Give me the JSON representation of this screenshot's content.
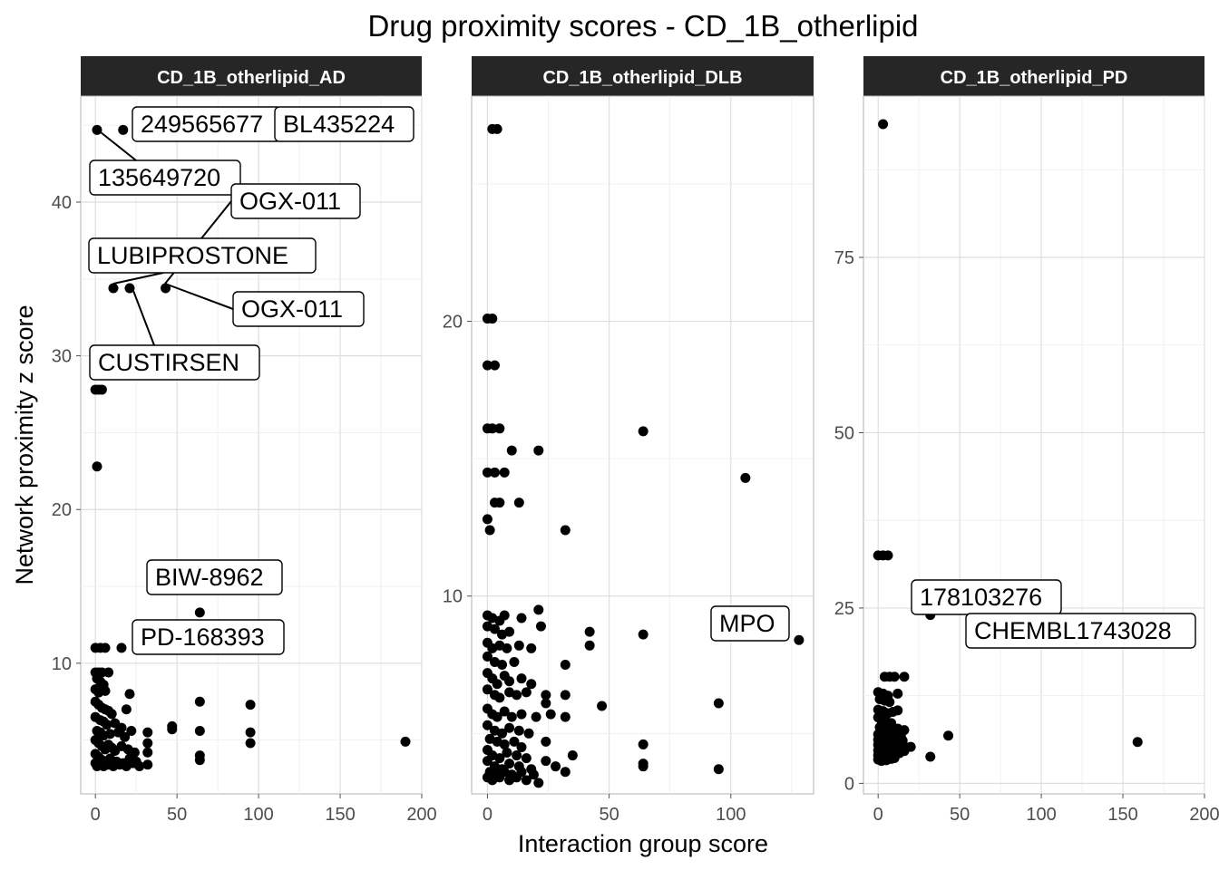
{
  "chart_data": {
    "type": "scatter",
    "title": "Drug proximity scores - CD_1B_otherlipid",
    "xlabel": "Interaction group score",
    "ylabel": "Network proximity z score",
    "grid": true,
    "panels": [
      {
        "name": "CD_1B_otherlipid_AD",
        "xlim": [
          -9,
          200
        ],
        "ylim": [
          1.5,
          46.9
        ],
        "xticks": [
          0,
          50,
          100,
          150,
          200
        ],
        "yticks": [
          10,
          20,
          30,
          40
        ],
        "points": [
          [
            1,
            44.7
          ],
          [
            17,
            44.7
          ],
          [
            11,
            34.4
          ],
          [
            21,
            34.4
          ],
          [
            43,
            34.4
          ],
          [
            0,
            27.8
          ],
          [
            2,
            27.8
          ],
          [
            4,
            27.8
          ],
          [
            1,
            22.8
          ],
          [
            64,
            13.3
          ],
          [
            0,
            11
          ],
          [
            3,
            11
          ],
          [
            6,
            11
          ],
          [
            16,
            11
          ],
          [
            0,
            9.4
          ],
          [
            2,
            9.4
          ],
          [
            4,
            9.4
          ],
          [
            8,
            9.4
          ],
          [
            1,
            9
          ],
          [
            3,
            8.8
          ],
          [
            5,
            8.6
          ],
          [
            0,
            8.3
          ],
          [
            2,
            8.1
          ],
          [
            6,
            8.2
          ],
          [
            21,
            8
          ],
          [
            0,
            7.5
          ],
          [
            2,
            7.3
          ],
          [
            4,
            7.1
          ],
          [
            6,
            7
          ],
          [
            8,
            6.9
          ],
          [
            10,
            6.7
          ],
          [
            19,
            7
          ],
          [
            64,
            7.5
          ],
          [
            95,
            7.3
          ],
          [
            0,
            6.5
          ],
          [
            3,
            6.3
          ],
          [
            5,
            6.2
          ],
          [
            7,
            6
          ],
          [
            12,
            6.1
          ],
          [
            16,
            5.8
          ],
          [
            1,
            5.6
          ],
          [
            3,
            5.5
          ],
          [
            5,
            5.3
          ],
          [
            9,
            5.4
          ],
          [
            14,
            5.5
          ],
          [
            18,
            5.2
          ],
          [
            22,
            5.6
          ],
          [
            47,
            5.9
          ],
          [
            47,
            5.7
          ],
          [
            64,
            5.6
          ],
          [
            95,
            5.5
          ],
          [
            32,
            5.5
          ],
          [
            0,
            5
          ],
          [
            2,
            4.8
          ],
          [
            4,
            4.6
          ],
          [
            6,
            4.4
          ],
          [
            8,
            4.7
          ],
          [
            10,
            4.5
          ],
          [
            12,
            4.3
          ],
          [
            16,
            4.6
          ],
          [
            20,
            4.4
          ],
          [
            24,
            4.2
          ],
          [
            32,
            4.8
          ],
          [
            95,
            4.8
          ],
          [
            190,
            4.9
          ],
          [
            0,
            4.1
          ],
          [
            2,
            3.9
          ],
          [
            4,
            3.7
          ],
          [
            6,
            3.6
          ],
          [
            9,
            3.8
          ],
          [
            13,
            3.6
          ],
          [
            17,
            3.5
          ],
          [
            21,
            3.8
          ],
          [
            25,
            3.6
          ],
          [
            32,
            4.2
          ],
          [
            64,
            4
          ],
          [
            64,
            3.7
          ],
          [
            0,
            3.5
          ],
          [
            1,
            3.3
          ],
          [
            3,
            3.4
          ],
          [
            5,
            3.3
          ],
          [
            8,
            3.4
          ],
          [
            11,
            3.3
          ],
          [
            15,
            3.4
          ],
          [
            19,
            3.3
          ],
          [
            23,
            3.5
          ],
          [
            27,
            3.3
          ],
          [
            32,
            3.4
          ]
        ],
        "labels": [
          {
            "text": "249565677",
            "x": 17,
            "y": 44.7
          },
          {
            "text": "BL435224",
            "x": 17,
            "y": 44.7
          },
          {
            "text": "135649720",
            "x": 1,
            "y": 44.7
          },
          {
            "text": "OGX-011",
            "x": 43,
            "y": 34.4
          },
          {
            "text": "LUBIPROSTONE",
            "x": 11,
            "y": 34.4
          },
          {
            "text": "OGX-011",
            "x": 43,
            "y": 34.4
          },
          {
            "text": "CUSTIRSEN",
            "x": 21,
            "y": 34.4
          },
          {
            "text": "BIW-8962",
            "x": 64,
            "y": 13.3
          },
          {
            "text": "PD-168393",
            "x": 16,
            "y": 11
          }
        ]
      },
      {
        "name": "CD_1B_otherlipid_DLB",
        "xlim": [
          -6.5,
          134
        ],
        "ylim": [
          2.8,
          28.2
        ],
        "xticks": [
          0,
          50,
          100
        ],
        "yticks": [
          10,
          20
        ],
        "points": [
          [
            2,
            27
          ],
          [
            4,
            27
          ],
          [
            0,
            20.1
          ],
          [
            2,
            20.1
          ],
          [
            0,
            18.4
          ],
          [
            3,
            18.4
          ],
          [
            0,
            16.1
          ],
          [
            2,
            16.1
          ],
          [
            5,
            16.1
          ],
          [
            64,
            16
          ],
          [
            106,
            14.3
          ],
          [
            10,
            15.3
          ],
          [
            21,
            15.3
          ],
          [
            0,
            14.5
          ],
          [
            3,
            14.5
          ],
          [
            7,
            14.5
          ],
          [
            3,
            13.4
          ],
          [
            5,
            13.4
          ],
          [
            13,
            13.4
          ],
          [
            0,
            12.8
          ],
          [
            1,
            12.4
          ],
          [
            32,
            12.4
          ],
          [
            0,
            9.3
          ],
          [
            2,
            9.2
          ],
          [
            5,
            9.1
          ],
          [
            7,
            9.3
          ],
          [
            14,
            9.2
          ],
          [
            21,
            9.5
          ],
          [
            0,
            8.9
          ],
          [
            3,
            8.8
          ],
          [
            6,
            8.6
          ],
          [
            9,
            8.7
          ],
          [
            22,
            8.9
          ],
          [
            42,
            8.7
          ],
          [
            64,
            8.6
          ],
          [
            128,
            8.4
          ],
          [
            0,
            8.3
          ],
          [
            2,
            8.1
          ],
          [
            5,
            8.2
          ],
          [
            8,
            8.1
          ],
          [
            13,
            8.2
          ],
          [
            18,
            8.1
          ],
          [
            42,
            8.2
          ],
          [
            0,
            7.8
          ],
          [
            3,
            7.6
          ],
          [
            6,
            7.5
          ],
          [
            11,
            7.6
          ],
          [
            32,
            7.5
          ],
          [
            0,
            7.2
          ],
          [
            2,
            7
          ],
          [
            4,
            6.8
          ],
          [
            7,
            7.1
          ],
          [
            9,
            6.9
          ],
          [
            14,
            7
          ],
          [
            18,
            6.8
          ],
          [
            0,
            6.6
          ],
          [
            3,
            6.4
          ],
          [
            5,
            6.3
          ],
          [
            9,
            6.5
          ],
          [
            12,
            6.4
          ],
          [
            16,
            6.5
          ],
          [
            24,
            6.4
          ],
          [
            24,
            6.1
          ],
          [
            32,
            6.4
          ],
          [
            47,
            6
          ],
          [
            95,
            6.1
          ],
          [
            0,
            5.9
          ],
          [
            2,
            5.7
          ],
          [
            4,
            5.6
          ],
          [
            7,
            5.8
          ],
          [
            10,
            5.6
          ],
          [
            14,
            5.7
          ],
          [
            20,
            5.6
          ],
          [
            26,
            5.7
          ],
          [
            32,
            5.6
          ],
          [
            0,
            5.3
          ],
          [
            3,
            5.1
          ],
          [
            6,
            5
          ],
          [
            9,
            5.2
          ],
          [
            13,
            5.1
          ],
          [
            17,
            5
          ],
          [
            1,
            4.8
          ],
          [
            4,
            4.7
          ],
          [
            7,
            4.6
          ],
          [
            11,
            4.7
          ],
          [
            14,
            4.5
          ],
          [
            24,
            4.7
          ],
          [
            0,
            4.4
          ],
          [
            2,
            4.2
          ],
          [
            5,
            4.1
          ],
          [
            8,
            4.3
          ],
          [
            12,
            4.2
          ],
          [
            16,
            4.1
          ],
          [
            64,
            4.6
          ],
          [
            0,
            4
          ],
          [
            3,
            3.8
          ],
          [
            6,
            3.7
          ],
          [
            9,
            3.9
          ],
          [
            13,
            3.8
          ],
          [
            18,
            3.7
          ],
          [
            24,
            4
          ],
          [
            35,
            4.2
          ],
          [
            1,
            3.6
          ],
          [
            4,
            3.5
          ],
          [
            7,
            3.6
          ],
          [
            10,
            3.5
          ],
          [
            14,
            3.6
          ],
          [
            19,
            3.5
          ],
          [
            28,
            3.8
          ],
          [
            32,
            3.6
          ],
          [
            64,
            3.9
          ],
          [
            64,
            3.8
          ],
          [
            95,
            3.7
          ],
          [
            0,
            3.4
          ],
          [
            2,
            3.3
          ],
          [
            5,
            3.4
          ],
          [
            9,
            3.3
          ],
          [
            12,
            3.4
          ],
          [
            16,
            3.3
          ],
          [
            21,
            3.2
          ]
        ],
        "labels": [
          {
            "text": "MPO",
            "x": 128,
            "y": 8.4
          }
        ]
      },
      {
        "name": "CD_1B_otherlipid_PD",
        "xlim": [
          -9,
          200
        ],
        "ylim": [
          -1.5,
          98
        ],
        "xticks": [
          0,
          50,
          100,
          150,
          200
        ],
        "yticks": [
          0,
          25,
          50,
          75
        ],
        "points": [
          [
            3,
            94
          ],
          [
            0,
            32.5
          ],
          [
            3,
            32.5
          ],
          [
            6,
            32.5
          ],
          [
            32,
            24
          ],
          [
            4,
            15.2
          ],
          [
            7,
            15.2
          ],
          [
            10,
            15.2
          ],
          [
            16,
            15.2
          ],
          [
            0,
            13
          ],
          [
            3,
            12.8
          ],
          [
            6,
            12.5
          ],
          [
            1,
            12
          ],
          [
            4,
            11.8
          ],
          [
            7,
            11.6
          ],
          [
            12,
            12.8
          ],
          [
            0,
            10.5
          ],
          [
            3,
            10.3
          ],
          [
            6,
            10
          ],
          [
            9,
            10.2
          ],
          [
            12,
            10.4
          ],
          [
            0,
            9.4
          ],
          [
            2,
            9
          ],
          [
            5,
            8.8
          ],
          [
            8,
            8.6
          ],
          [
            1,
            8
          ],
          [
            3,
            7.8
          ],
          [
            6,
            7.6
          ],
          [
            9,
            7.4
          ],
          [
            12,
            7.8
          ],
          [
            16,
            7.6
          ],
          [
            0,
            7
          ],
          [
            2,
            6.7
          ],
          [
            5,
            6.5
          ],
          [
            8,
            6.4
          ],
          [
            10,
            6.5
          ],
          [
            14,
            6.6
          ],
          [
            43,
            6.8
          ],
          [
            0,
            6.2
          ],
          [
            2,
            6
          ],
          [
            4,
            5.9
          ],
          [
            7,
            6
          ],
          [
            11,
            5.8
          ],
          [
            15,
            6.1
          ],
          [
            159,
            5.9
          ],
          [
            0,
            5.5
          ],
          [
            2,
            5.3
          ],
          [
            5,
            5.1
          ],
          [
            8,
            5.2
          ],
          [
            12,
            5
          ],
          [
            16,
            5.3
          ],
          [
            20,
            5.2
          ],
          [
            0,
            4.7
          ],
          [
            3,
            4.5
          ],
          [
            6,
            4.4
          ],
          [
            9,
            4.5
          ],
          [
            13,
            4.3
          ],
          [
            16,
            4.6
          ],
          [
            0,
            4
          ],
          [
            2,
            3.8
          ],
          [
            4,
            3.7
          ],
          [
            7,
            3.9
          ],
          [
            10,
            3.6
          ],
          [
            32,
            3.8
          ],
          [
            0,
            3.4
          ],
          [
            2,
            3.2
          ],
          [
            5,
            3.3
          ],
          [
            8,
            3.5
          ]
        ],
        "labels": [
          {
            "text": "178103276",
            "x": 32,
            "y": 24
          },
          {
            "text": "CHEMBL1743028",
            "x": 32,
            "y": 24
          }
        ]
      }
    ]
  }
}
